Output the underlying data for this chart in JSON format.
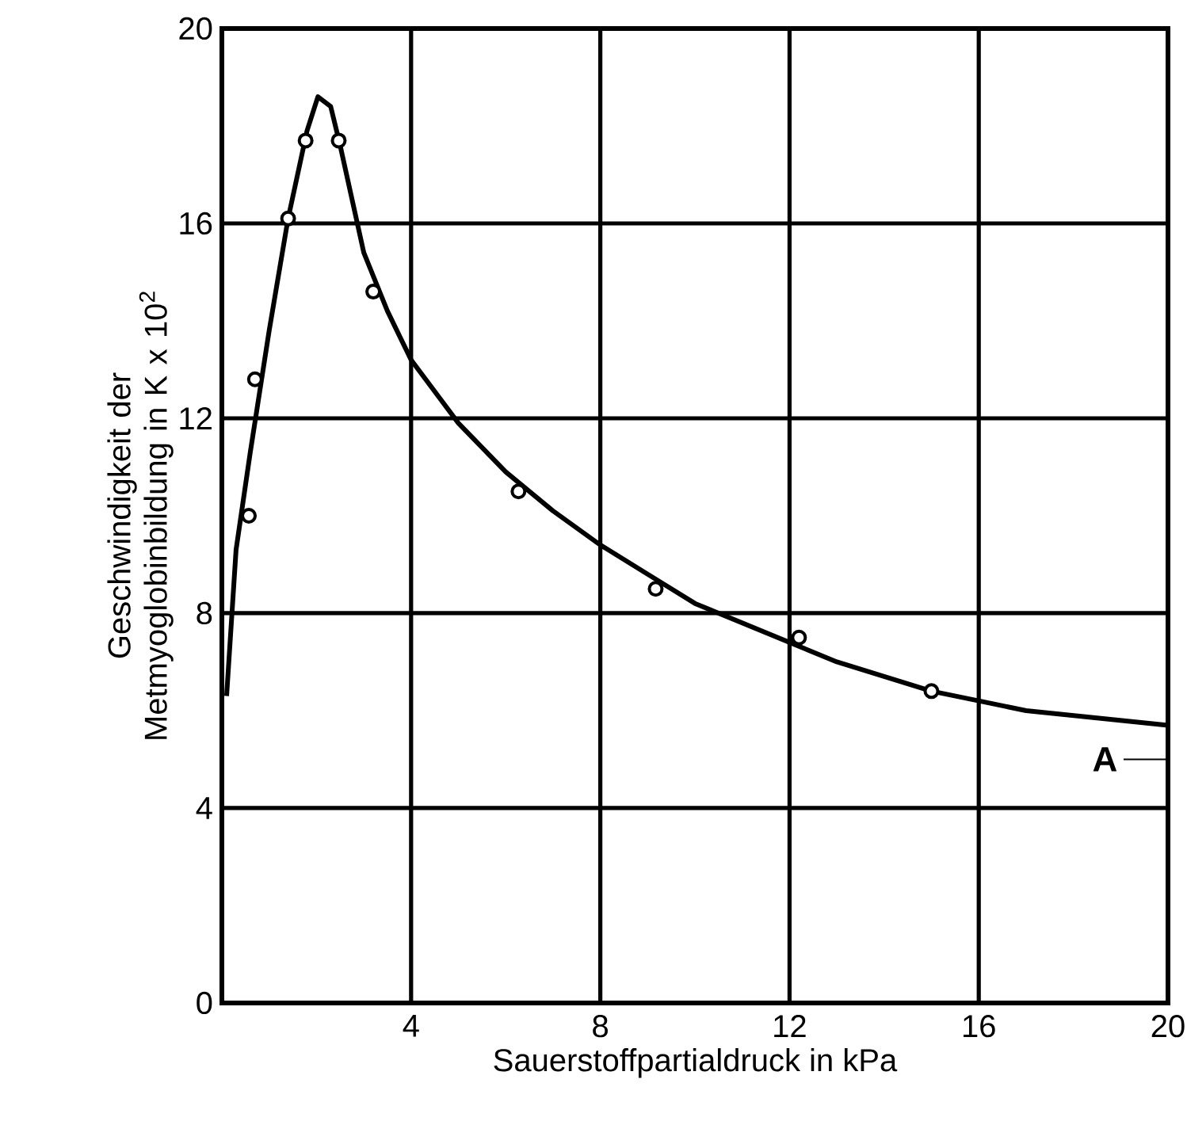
{
  "chart_data": {
    "type": "line",
    "xlabel": "Sauerstoffpartialdruck in kPa",
    "ylabel": "Geschwindigkeit der Metmyoglobinbildung in K x 10$^{2}$",
    "xlim": [
      0,
      20
    ],
    "ylim": [
      0,
      20
    ],
    "xticks": [
      4,
      8,
      12,
      16,
      20
    ],
    "yticks": [
      0,
      4,
      8,
      12,
      16,
      20
    ],
    "grid": true,
    "series": [
      {
        "type": "scatter",
        "color": "#000000",
        "marker": "circle",
        "x": [
          0.57,
          0.7,
          1.4,
          1.77,
          2.47,
          3.2,
          6.27,
          9.17,
          12.2,
          15.0
        ],
        "values": [
          10.0,
          12.8,
          16.1,
          17.7,
          17.7,
          14.6,
          10.5,
          8.5,
          7.5,
          6.4
        ]
      },
      {
        "color": "#000000",
        "marker": "none",
        "line_style": "solid",
        "x": [
          0.1,
          0.3,
          0.6,
          1.0,
          1.4,
          1.8,
          2.03,
          2.3,
          2.5,
          3.0,
          3.5,
          4,
          5,
          6,
          7,
          8,
          9,
          10,
          11,
          12,
          13,
          14,
          15,
          16,
          17,
          18,
          19,
          20
        ],
        "values": [
          6.3,
          9.3,
          11.3,
          13.8,
          16.1,
          17.9,
          18.6,
          18.4,
          17.6,
          15.4,
          14.2,
          13.2,
          11.9,
          10.9,
          10.1,
          9.4,
          8.8,
          8.2,
          7.8,
          7.4,
          7.0,
          6.7,
          6.4,
          6.2,
          6.0,
          5.9,
          5.8,
          5.7
        ]
      }
    ],
    "annotations": [
      "A"
    ]
  }
}
